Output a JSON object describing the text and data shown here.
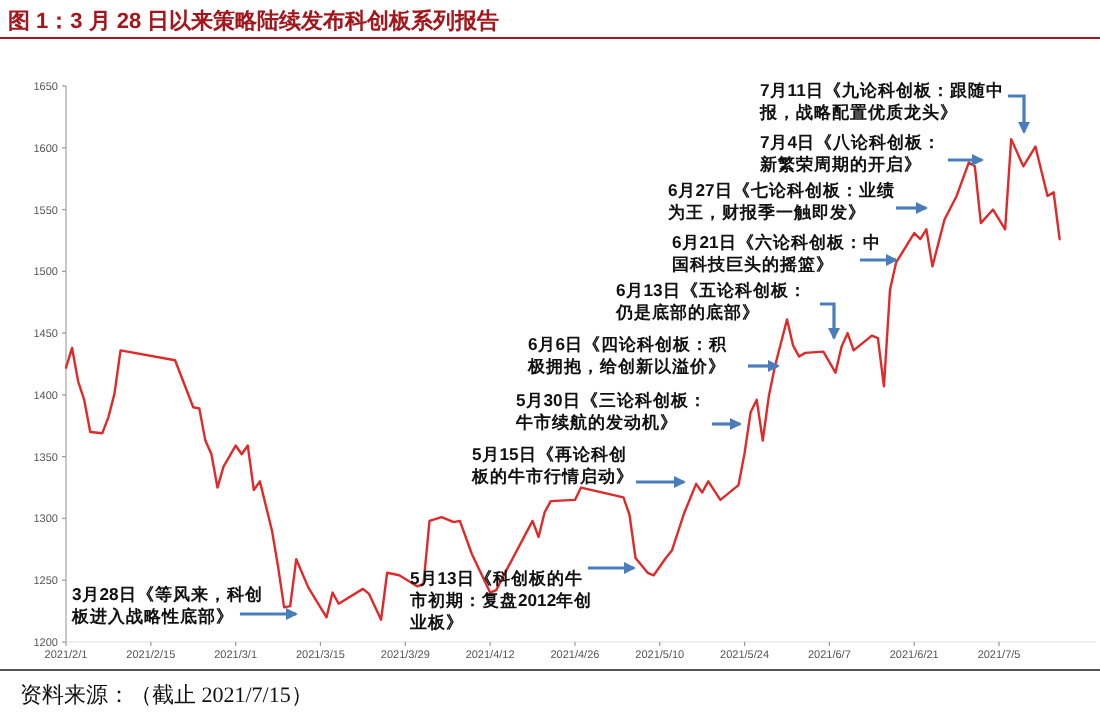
{
  "chart_data": {
    "type": "line",
    "title": "图 1：3 月 28 日以来策略陆续发布科创板系列报告",
    "x": [
      "2021-02-01",
      "2021-02-02",
      "2021-02-03",
      "2021-02-04",
      "2021-02-05",
      "2021-02-07",
      "2021-02-08",
      "2021-02-09",
      "2021-02-10",
      "2021-02-19",
      "2021-02-22",
      "2021-02-23",
      "2021-02-24",
      "2021-02-25",
      "2021-02-26",
      "2021-02-27",
      "2021-03-01",
      "2021-03-02",
      "2021-03-03",
      "2021-03-04",
      "2021-03-05",
      "2021-03-07",
      "2021-03-08",
      "2021-03-09",
      "2021-03-10",
      "2021-03-11",
      "2021-03-13",
      "2021-03-16",
      "2021-03-17",
      "2021-03-18",
      "2021-03-22",
      "2021-03-23",
      "2021-03-25",
      "2021-03-26",
      "2021-03-28",
      "2021-03-31",
      "2021-04-01",
      "2021-04-02",
      "2021-04-04",
      "2021-04-06",
      "2021-04-07",
      "2021-04-09",
      "2021-04-12",
      "2021-04-13",
      "2021-04-15",
      "2021-04-19",
      "2021-04-20",
      "2021-04-21",
      "2021-04-22",
      "2021-04-26",
      "2021-04-27",
      "2021-05-04",
      "2021-05-05",
      "2021-05-06",
      "2021-05-08",
      "2021-05-09",
      "2021-05-11",
      "2021-05-12",
      "2021-05-14",
      "2021-05-16",
      "2021-05-17",
      "2021-05-18",
      "2021-05-20",
      "2021-05-23",
      "2021-05-24",
      "2021-05-25",
      "2021-05-26",
      "2021-05-27",
      "2021-05-28",
      "2021-05-29",
      "2021-05-31",
      "2021-06-01",
      "2021-06-02",
      "2021-06-03",
      "2021-06-06",
      "2021-06-08",
      "2021-06-09",
      "2021-06-10",
      "2021-06-11",
      "2021-06-14",
      "2021-06-15",
      "2021-06-16",
      "2021-06-17",
      "2021-06-18",
      "2021-06-20",
      "2021-06-21",
      "2021-06-22",
      "2021-06-23",
      "2021-06-24",
      "2021-06-26",
      "2021-06-28",
      "2021-06-30",
      "2021-07-01",
      "2021-07-02",
      "2021-07-04",
      "2021-07-06",
      "2021-07-07",
      "2021-07-09",
      "2021-07-11",
      "2021-07-13",
      "2021-07-14",
      "2021-07-15"
    ],
    "series": [
      {
        "color": "#e02a2a",
        "values": [
          1422,
          1438,
          1411,
          1396,
          1370,
          1369,
          1382,
          1401,
          1436,
          1428,
          1390,
          1389,
          1363,
          1352,
          1325,
          1342,
          1359,
          1352,
          1359,
          1323,
          1330,
          1290,
          1261,
          1228,
          1229,
          1267,
          1244,
          1220,
          1240,
          1231,
          1243,
          1239,
          1218,
          1256,
          1254,
          1245,
          1247,
          1298,
          1301,
          1297,
          1298,
          1271,
          1240,
          1242,
          1261,
          1298,
          1285,
          1305,
          1314,
          1315,
          1325,
          1317,
          1303,
          1268,
          1256,
          1254,
          1268,
          1274,
          1304,
          1328,
          1321,
          1330,
          1315,
          1327,
          1353,
          1386,
          1396,
          1363,
          1399,
          1423,
          1461,
          1440,
          1431,
          1434,
          1435,
          1418,
          1439,
          1450,
          1436,
          1448,
          1446,
          1407,
          1485,
          1507,
          1523,
          1531,
          1526,
          1534,
          1504,
          1542,
          1561,
          1588,
          1585,
          1539,
          1550,
          1534,
          1607,
          1585,
          1601,
          1561,
          1564,
          1526
        ]
      }
    ],
    "xlim": [
      "2021-02-01",
      "2021-07-21"
    ],
    "xticks": [
      {
        "value": "2021-02-01",
        "label": "2021/2/1"
      },
      {
        "value": "2021-02-15",
        "label": "2021/2/15"
      },
      {
        "value": "2021-03-01",
        "label": "2021/3/1"
      },
      {
        "value": "2021-03-15",
        "label": "2021/3/15"
      },
      {
        "value": "2021-03-29",
        "label": "2021/3/29"
      },
      {
        "value": "2021-04-12",
        "label": "2021/4/12"
      },
      {
        "value": "2021-04-26",
        "label": "2021/4/26"
      },
      {
        "value": "2021-05-10",
        "label": "2021/5/10"
      },
      {
        "value": "2021-05-24",
        "label": "2021/5/24"
      },
      {
        "value": "2021-06-07",
        "label": "2021/6/7"
      },
      {
        "value": "2021-06-21",
        "label": "2021/6/21"
      },
      {
        "value": "2021-07-05",
        "label": "2021/7/5"
      }
    ],
    "ylim": [
      1200,
      1650
    ],
    "yticks": [
      1200,
      1250,
      1300,
      1350,
      1400,
      1450,
      1500,
      1550,
      1600,
      1650
    ],
    "annotations": [
      "3月28日《等风来，科创板进入战略性底部》",
      "5月13日《科创板的牛市初期：复盘2012年创业板》",
      "5月15日《再论科创板的牛市行情启动》",
      "5月30日《三论科创板：牛市续航的发动机》",
      "6月6日《四论科创板：积极拥抱，给创新以溢价》",
      "6月13日《五论科创板：仍是底部的底部》",
      "6月21日《六论科创板：中国科技巨头的摇篮》",
      "6月27日《七论科创板：业绩为王，财报季一触即发》",
      "7月4日《八论科创板：新繁荣周期的开启》",
      "7月11日《九论科创板：跟随中报，战略配置优质龙头》",
      "资料来源：（截止 2021/7/15）"
    ]
  }
}
